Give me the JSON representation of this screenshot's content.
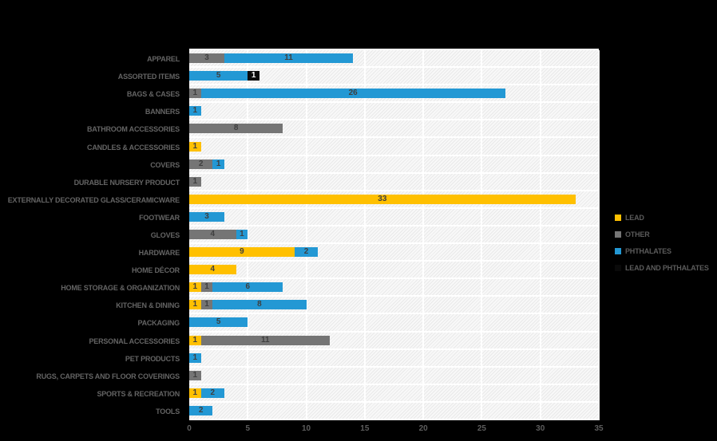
{
  "page": {
    "background_color": "#000000",
    "title": ""
  },
  "chart_data": {
    "type": "bar",
    "orientation": "horizontal",
    "stacked": true,
    "title": "",
    "xlabel": "",
    "ylabel": "",
    "xlim": [
      0,
      35
    ],
    "xticks": [
      0,
      5,
      10,
      15,
      20,
      25,
      30,
      35
    ],
    "grid": true,
    "legend_position": "right",
    "plot_background": "diagonal-hatch-light-gray",
    "categories": [
      "APPAREL",
      "ASSORTED ITEMS",
      "BAGS & CASES",
      "BANNERS",
      "BATHROOM ACCESSORIES",
      "CANDLES & ACCESSORIES",
      "COVERS",
      "DURABLE NURSERY PRODUCT",
      "EXTERNALLY DECORATED GLASS/CERAMICWARE",
      "FOOTWEAR",
      "GLOVES",
      "HARDWARE",
      "HOME DÉCOR",
      "HOME STORAGE & ORGANIZATION",
      "KITCHEN & DINING",
      "PACKAGING",
      "PERSONAL ACCESSORIES",
      "PET PRODUCTS",
      "RUGS, CARPETS AND FLOOR COVERINGS",
      "SPORTS & RECREATION",
      "TOOLS"
    ],
    "series": [
      {
        "name": "LEAD",
        "color": "#FFC000",
        "label_color": "#3F3F3F",
        "values": [
          0,
          0,
          0,
          0,
          0,
          1,
          0,
          0,
          33,
          0,
          0,
          9,
          4,
          1,
          1,
          0,
          1,
          0,
          0,
          1,
          0
        ]
      },
      {
        "name": "OTHER",
        "color": "#757575",
        "label_color": "#3F3F3F",
        "values": [
          3,
          0,
          1,
          0,
          8,
          0,
          2,
          1,
          0,
          0,
          4,
          0,
          0,
          1,
          1,
          0,
          11,
          0,
          1,
          0,
          0
        ]
      },
      {
        "name": "PHTHALATES",
        "color": "#2398D4",
        "label_color": "#3F3F3F",
        "values": [
          11,
          5,
          26,
          1,
          0,
          0,
          1,
          0,
          0,
          3,
          1,
          2,
          0,
          6,
          8,
          5,
          0,
          1,
          0,
          2,
          2
        ]
      },
      {
        "name": "LEAD AND PHTHALATES",
        "color": "#0A0A0A",
        "label_color": "#FFFFFF",
        "values": [
          0,
          1,
          0,
          0,
          0,
          0,
          0,
          0,
          0,
          0,
          0,
          0,
          0,
          0,
          0,
          0,
          0,
          0,
          0,
          0,
          0
        ]
      }
    ]
  }
}
